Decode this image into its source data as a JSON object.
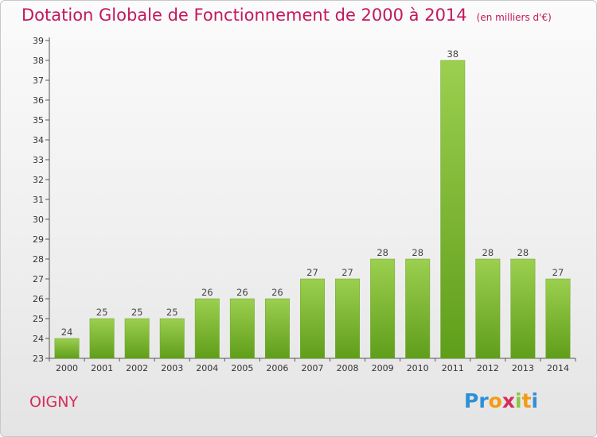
{
  "chart_data": {
    "type": "bar",
    "title": "Dotation Globale de Fonctionnement de 2000 à 2014",
    "unit": "(en milliers d'€)",
    "categories": [
      "2000",
      "2001",
      "2002",
      "2003",
      "2004",
      "2005",
      "2006",
      "2007",
      "2008",
      "2009",
      "2010",
      "2011",
      "2012",
      "2013",
      "2014"
    ],
    "values": [
      24,
      25,
      25,
      25,
      26,
      26,
      26,
      27,
      27,
      28,
      28,
      38,
      28,
      28,
      27
    ],
    "ylim": [
      23,
      39
    ],
    "yticks": [
      23,
      24,
      25,
      26,
      27,
      28,
      29,
      30,
      31,
      32,
      33,
      34,
      35,
      36,
      37,
      38,
      39
    ],
    "grid": false,
    "bar_color": "#7dbf2e"
  },
  "commune": "OIGNY",
  "logo": {
    "letters": [
      "P",
      "r",
      "o",
      "x",
      "i",
      "t",
      "i"
    ],
    "colors": [
      "#2e8fd6",
      "#2e8fd6",
      "#f39c12",
      "#d62c5c",
      "#8cc63f",
      "#f39c12",
      "#2e8fd6"
    ]
  }
}
